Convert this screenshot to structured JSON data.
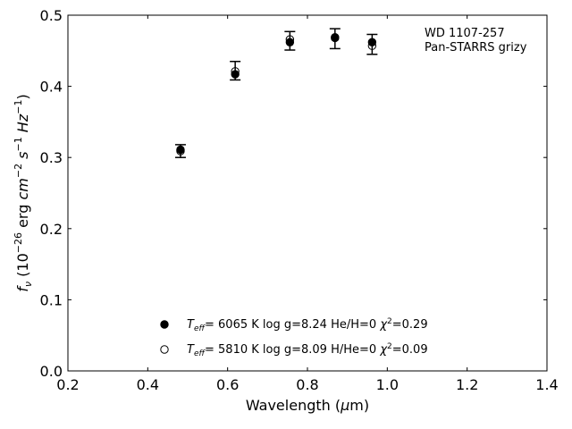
{
  "chart_data": {
    "type": "scatter",
    "annotation": [
      "WD 1107-257",
      "Pan-STARRS grizy"
    ],
    "xlabel_parts": [
      "Wavelength (",
      "μ",
      "m)"
    ],
    "ylabel_parts": {
      "f": "f",
      "nu": "ν",
      "open": " (10",
      "exp26": "−26",
      "erg": " erg ",
      "cm": "cm",
      "exp2": "−2",
      "s": " s",
      "exp1a": "−1",
      "hz": " Hz",
      "exp1b": "−1",
      "close": ")"
    },
    "xlim": [
      0.2,
      1.4
    ],
    "ylim": [
      0.0,
      0.5
    ],
    "xticks": [
      0.2,
      0.4,
      0.6,
      0.8,
      1.0,
      1.2,
      1.4
    ],
    "xtick_labels": [
      "0.2",
      "0.4",
      "0.6",
      "0.8",
      "1.0",
      "1.2",
      "1.4"
    ],
    "yticks": [
      0.0,
      0.1,
      0.2,
      0.3,
      0.4,
      0.5
    ],
    "ytick_labels": [
      "0.0",
      "0.1",
      "0.2",
      "0.3",
      "0.4",
      "0.5"
    ],
    "observed": {
      "x": [
        0.482,
        0.619,
        0.756,
        0.869,
        0.962
      ],
      "y": [
        0.309,
        0.422,
        0.464,
        0.467,
        0.459
      ],
      "yerr": [
        0.009,
        0.013,
        0.013,
        0.014,
        0.014
      ]
    },
    "series": [
      {
        "marker": "filled",
        "x": [
          0.482,
          0.619,
          0.756,
          0.869,
          0.962
        ],
        "y": [
          0.311,
          0.417,
          0.462,
          0.469,
          0.462
        ],
        "legend": {
          "t": "T",
          "eff": "eff",
          "teff_value": "=  6065 K",
          "logg": "  log g=8.24",
          "comp": "  He/H=0",
          "chi": "  χ",
          "chi_exp": "2",
          "chi_value": "=0.29"
        }
      },
      {
        "marker": "open",
        "x": [
          0.482,
          0.619,
          0.756,
          0.869,
          0.962
        ],
        "y": [
          0.309,
          0.421,
          0.466,
          0.468,
          0.457
        ],
        "legend": {
          "t": "T",
          "eff": "eff",
          "teff_value": "=  5810 K",
          "logg": "  log g=8.09",
          "comp": "  H/He=0",
          "chi": "  χ",
          "chi_exp": "2",
          "chi_value": "=0.09"
        }
      }
    ],
    "legend_position": "lower-center",
    "grid": false
  }
}
